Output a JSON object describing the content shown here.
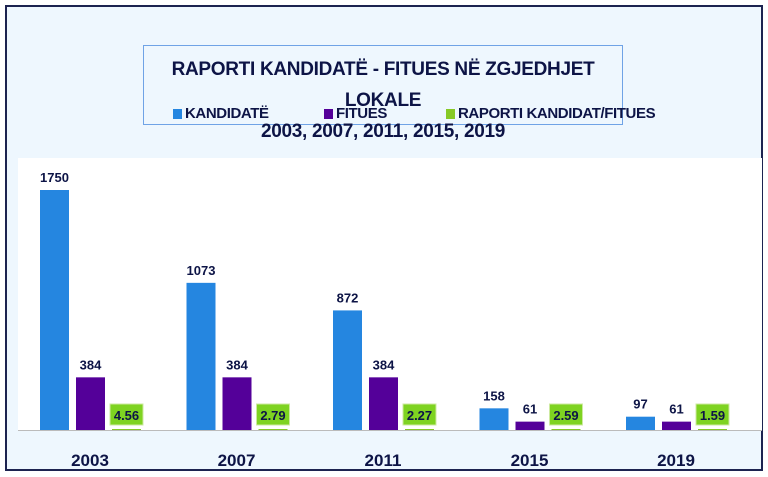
{
  "chart_data": {
    "type": "bar",
    "title_line1": "RAPORTI KANDIDATË - FITUES NË ZGJEDHJET LOKALE",
    "title_line2": "2003, 2007, 2011, 2015, 2019",
    "categories": [
      "2003",
      "2007",
      "2011",
      "2015",
      "2019"
    ],
    "series": [
      {
        "name": "KANDIDATË",
        "color": "#2586e0",
        "values": [
          1750,
          1073,
          872,
          158,
          97
        ],
        "labels": [
          "1750",
          "1073",
          "872",
          "158",
          "97"
        ]
      },
      {
        "name": "FITUES",
        "color": "#540099",
        "values": [
          384,
          384,
          384,
          61,
          61
        ],
        "labels": [
          "384",
          "384",
          "384",
          "61",
          "61"
        ]
      },
      {
        "name": "RAPORTI KANDIDAT/FITUES",
        "color": "#86c926",
        "values": [
          4.56,
          2.79,
          2.27,
          2.59,
          1.59
        ],
        "labels": [
          "4.56",
          "2.79",
          "2.27",
          "2.59",
          "1.59"
        ]
      }
    ],
    "xlabel": "",
    "ylabel": "",
    "ylim": [
      0,
      1750
    ],
    "grid": false,
    "legend": "top-center"
  }
}
